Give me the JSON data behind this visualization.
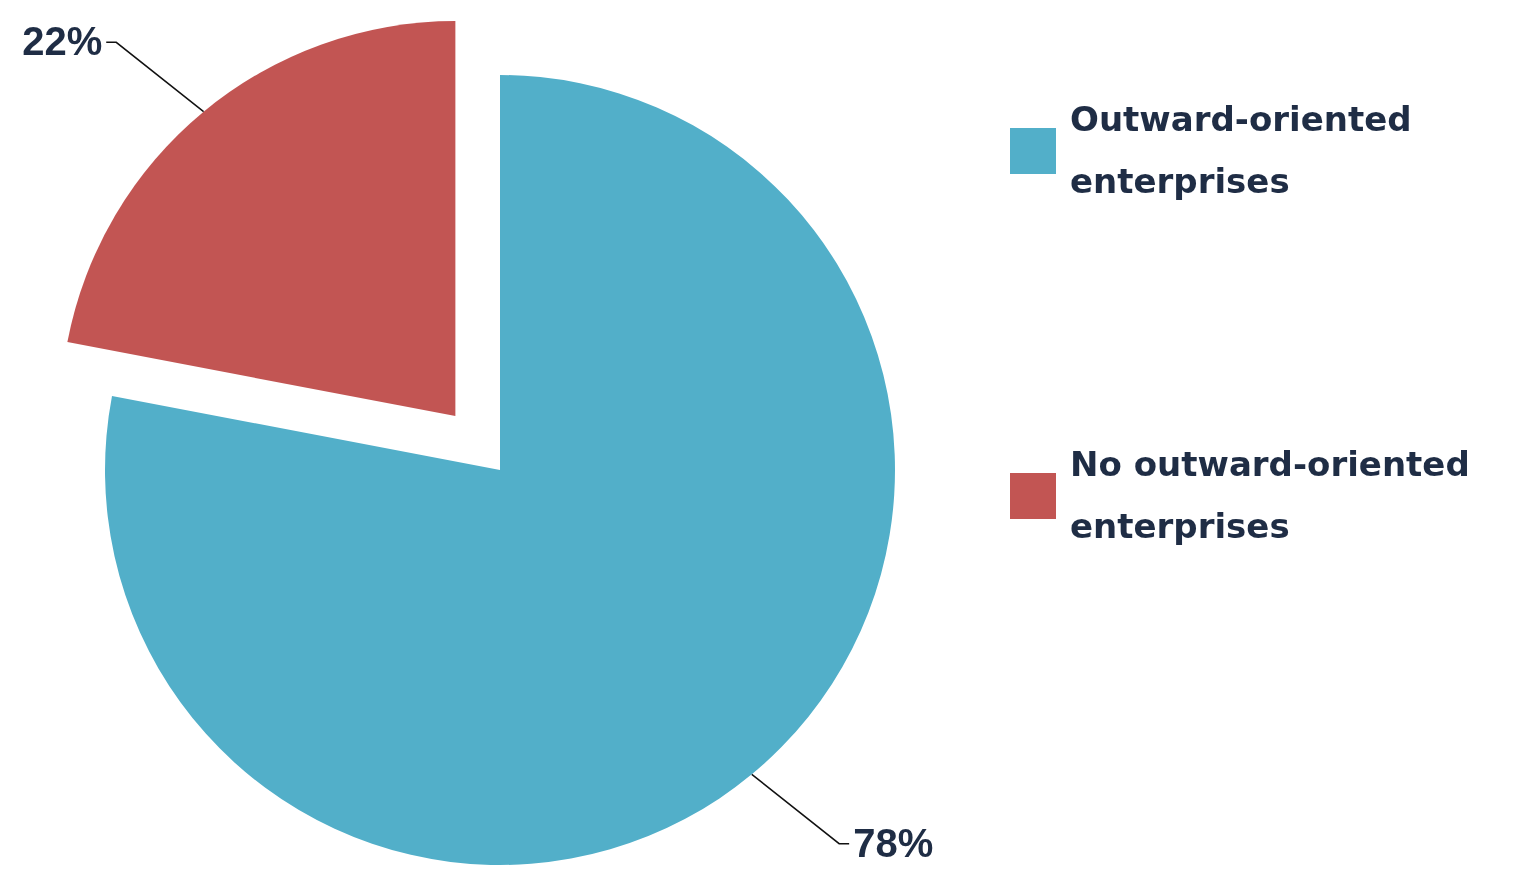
{
  "chart_data": {
    "type": "pie",
    "categories": [
      "Outward-oriented enterprises",
      "No outward-oriented enterprises"
    ],
    "values": [
      78,
      22
    ],
    "colors": [
      "#52afc9",
      "#c25553"
    ],
    "value_labels": [
      "78%",
      "22%"
    ],
    "legend": "right"
  }
}
